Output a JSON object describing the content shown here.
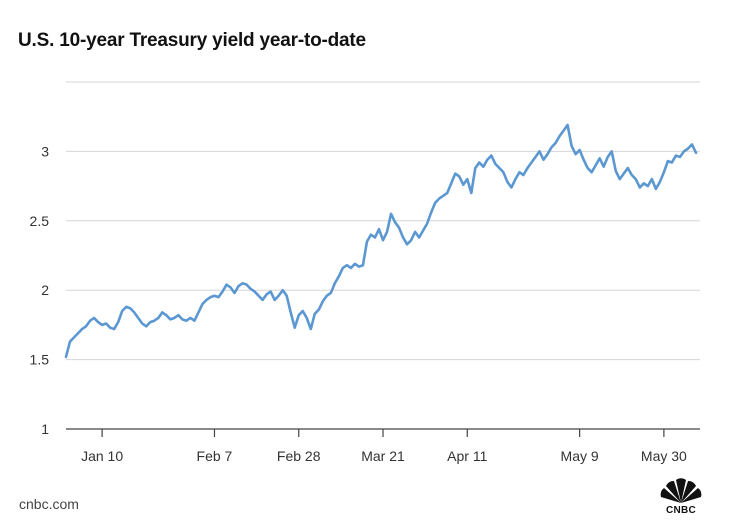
{
  "page": {
    "title": "U.S. 10-year Treasury yield year-to-date",
    "source": "cnbc.com",
    "logo_text": "CNBC"
  },
  "colors": {
    "line": "#5b97d1",
    "grid": "#d6d6d6",
    "axis": "#444444"
  },
  "chart_data": {
    "type": "line",
    "title": "U.S. 10-year Treasury yield year-to-date",
    "xlabel": "",
    "ylabel": "",
    "ylim": [
      1,
      3.5
    ],
    "xlim": [
      0,
      158
    ],
    "y_ticks": [
      1,
      1.5,
      2,
      2.5,
      3
    ],
    "y_tick_labels": [
      "1",
      "1.5",
      "2",
      "2.5",
      "3"
    ],
    "x_ticks": [
      {
        "day": 9,
        "label": "Jan 10"
      },
      {
        "day": 37,
        "label": "Feb 7"
      },
      {
        "day": 58,
        "label": "Feb 28"
      },
      {
        "day": 79,
        "label": "Mar 21"
      },
      {
        "day": 100,
        "label": "Apr 11"
      },
      {
        "day": 128,
        "label": "May 9"
      },
      {
        "day": 149,
        "label": "May 30"
      }
    ],
    "grid": true,
    "series": [
      {
        "name": "10-year Treasury yield",
        "x": [
          0,
          1,
          2,
          3,
          4,
          5,
          6,
          7,
          8,
          9,
          10,
          11,
          12,
          13,
          14,
          15,
          16,
          17,
          18,
          19,
          20,
          21,
          22,
          23,
          24,
          25,
          26,
          27,
          28,
          29,
          30,
          31,
          32,
          33,
          34,
          35,
          36,
          37,
          38,
          39,
          40,
          41,
          42,
          43,
          44,
          45,
          46,
          47,
          48,
          49,
          50,
          51,
          52,
          53,
          54,
          55,
          56,
          57,
          58,
          59,
          60,
          61,
          62,
          63,
          64,
          65,
          66,
          67,
          68,
          69,
          70,
          71,
          72,
          73,
          74,
          75,
          76,
          77,
          78,
          79,
          80,
          81,
          82,
          83,
          84,
          85,
          86,
          87,
          88,
          89,
          90,
          91,
          92,
          93,
          94,
          95,
          96,
          97,
          98,
          99,
          100,
          101,
          102,
          103,
          104,
          105,
          106,
          107,
          108,
          109,
          110,
          111,
          112,
          113,
          114,
          115,
          116,
          117,
          118,
          119,
          120,
          121,
          122,
          123,
          124,
          125,
          126,
          127,
          128,
          129,
          130,
          131,
          132,
          133,
          134,
          135,
          136,
          137,
          138,
          139,
          140,
          141,
          142,
          143,
          144,
          145,
          146,
          147,
          148,
          149,
          150,
          151,
          152,
          153,
          154,
          155,
          156,
          157
        ],
        "values": [
          1.52,
          1.63,
          1.66,
          1.69,
          1.72,
          1.74,
          1.78,
          1.8,
          1.77,
          1.75,
          1.76,
          1.73,
          1.72,
          1.77,
          1.85,
          1.88,
          1.87,
          1.84,
          1.8,
          1.76,
          1.74,
          1.77,
          1.78,
          1.8,
          1.84,
          1.82,
          1.79,
          1.8,
          1.82,
          1.79,
          1.78,
          1.8,
          1.78,
          1.84,
          1.9,
          1.93,
          1.95,
          1.96,
          1.95,
          1.99,
          2.04,
          2.02,
          1.98,
          2.03,
          2.05,
          2.04,
          2.01,
          1.99,
          1.96,
          1.93,
          1.97,
          1.99,
          1.93,
          1.96,
          2.0,
          1.96,
          1.84,
          1.73,
          1.82,
          1.85,
          1.8,
          1.72,
          1.83,
          1.86,
          1.92,
          1.96,
          1.98,
          2.05,
          2.1,
          2.16,
          2.18,
          2.16,
          2.19,
          2.17,
          2.18,
          2.35,
          2.4,
          2.38,
          2.44,
          2.36,
          2.42,
          2.55,
          2.49,
          2.45,
          2.38,
          2.33,
          2.36,
          2.42,
          2.38,
          2.43,
          2.48,
          2.56,
          2.63,
          2.66,
          2.68,
          2.7,
          2.77,
          2.84,
          2.82,
          2.76,
          2.8,
          2.7,
          2.88,
          2.92,
          2.89,
          2.94,
          2.97,
          2.91,
          2.88,
          2.85,
          2.78,
          2.74,
          2.8,
          2.85,
          2.83,
          2.88,
          2.92,
          2.96,
          3.0,
          2.94,
          2.98,
          3.03,
          3.06,
          3.11,
          3.15,
          3.19,
          3.04,
          2.98,
          3.01,
          2.94,
          2.88,
          2.85,
          2.9,
          2.95,
          2.89,
          2.96,
          3.0,
          2.86,
          2.8,
          2.84,
          2.88,
          2.83,
          2.8,
          2.74,
          2.77,
          2.75,
          2.8,
          2.73,
          2.78,
          2.85,
          2.93,
          2.92,
          2.97,
          2.96,
          3.0,
          3.02,
          3.05,
          2.99
        ]
      }
    ]
  }
}
